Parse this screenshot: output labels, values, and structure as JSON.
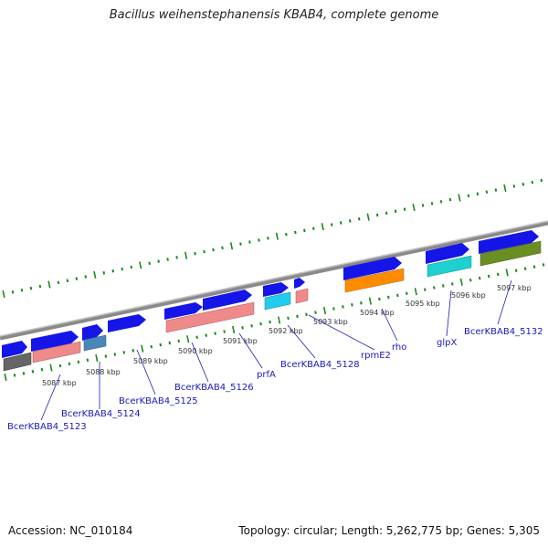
{
  "title": "Bacillus weihenstephanensis KBAB4, complete genome",
  "footer": {
    "accession": "Accession: NC_010184",
    "summary": "Topology: circular; Length: 5,262,775 bp; Genes: 5,305"
  },
  "colors": {
    "cds": "#1515e8",
    "backbone": "#8a8a8a",
    "tick": "#1a8a1a",
    "label": "#1a1ab8",
    "feature_gray": "#666666",
    "feature_pink": "#ee8a8a",
    "feature_steel": "#4a86b8",
    "feature_cyan": "#22ccee",
    "feature_orange": "#ff8c00",
    "feature_turquoise": "#1ed0d0",
    "feature_olive": "#6b8e23"
  },
  "scale": {
    "unit": "kbp",
    "labels": [
      {
        "text": "5087 kbp"
      },
      {
        "text": "5088 kbp"
      },
      {
        "text": "5089 kbp"
      },
      {
        "text": "5090 kbp"
      },
      {
        "text": "5091 kbp"
      },
      {
        "text": "5092 kbp"
      },
      {
        "text": "5093 kbp"
      },
      {
        "text": "5094 kbp"
      },
      {
        "text": "5095 kbp"
      },
      {
        "text": "5096 kbp"
      },
      {
        "text": "5097 kbp"
      }
    ]
  },
  "genes": [
    {
      "label": "BcerKBAB4_5123"
    },
    {
      "label": "BcerKBAB4_5124"
    },
    {
      "label": "BcerKBAB4_5125"
    },
    {
      "label": "BcerKBAB4_5126"
    },
    {
      "label": "prfA"
    },
    {
      "label": "BcerKBAB4_5128"
    },
    {
      "label": "rpmE2"
    },
    {
      "label": "rho"
    },
    {
      "label": "glpX"
    },
    {
      "label": "BcerKBAB4_5132"
    }
  ]
}
